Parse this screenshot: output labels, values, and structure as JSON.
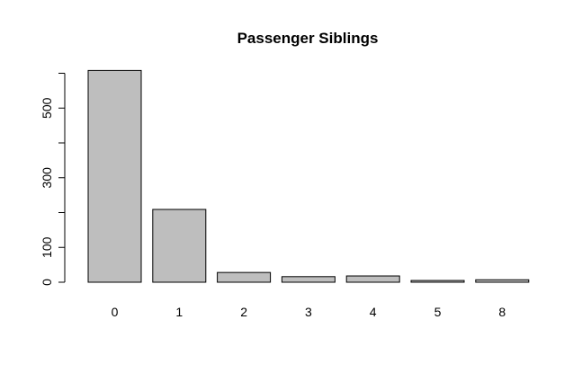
{
  "chart_data": {
    "type": "bar",
    "title": "Passenger Siblings",
    "xlabel": "",
    "ylabel": "",
    "categories": [
      "0",
      "1",
      "2",
      "3",
      "4",
      "5",
      "8"
    ],
    "values": [
      608,
      209,
      28,
      16,
      18,
      5,
      7
    ],
    "ylim": [
      0,
      620
    ],
    "y_ticks": [
      0,
      100,
      200,
      300,
      400,
      500,
      600
    ],
    "y_tick_labels": [
      "0",
      "100",
      "",
      "300",
      "",
      "500",
      ""
    ],
    "bar_color": "#bebebe",
    "grid": false,
    "legend": "none"
  }
}
